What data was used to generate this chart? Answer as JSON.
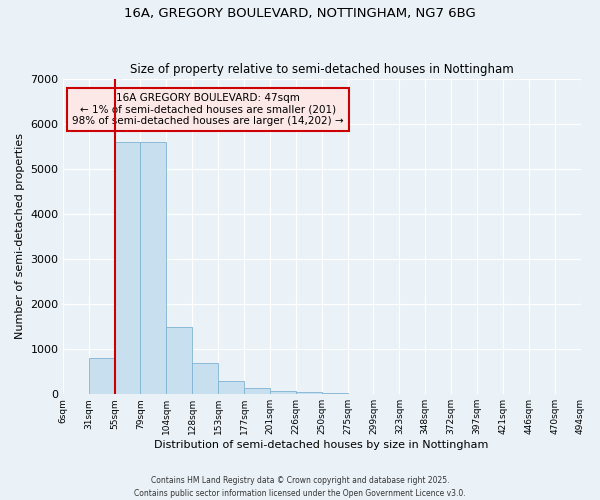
{
  "title": "16A, GREGORY BOULEVARD, NOTTINGHAM, NG7 6BG",
  "subtitle": "Size of property relative to semi-detached houses in Nottingham",
  "xlabel": "Distribution of semi-detached houses by size in Nottingham",
  "ylabel": "Number of semi-detached properties",
  "bar_color": "#c8dff0",
  "bar_edge_color": "#7fb3d3",
  "background_color": "#eaf2f8",
  "grid_color": "#ffffff",
  "ylim": [
    0,
    7000
  ],
  "yticks": [
    0,
    1000,
    2000,
    3000,
    4000,
    5000,
    6000,
    7000
  ],
  "bin_labels": [
    "6sqm",
    "31sqm",
    "55sqm",
    "79sqm",
    "104sqm",
    "128sqm",
    "153sqm",
    "177sqm",
    "201sqm",
    "226sqm",
    "250sqm",
    "275sqm",
    "299sqm",
    "323sqm",
    "348sqm",
    "372sqm",
    "397sqm",
    "421sqm",
    "446sqm",
    "470sqm",
    "494sqm"
  ],
  "bar_values": [
    5,
    800,
    5600,
    5600,
    1480,
    680,
    280,
    130,
    60,
    40,
    20,
    5,
    0,
    0,
    0,
    0,
    0,
    0,
    0,
    0
  ],
  "property_line_bin_index": 2,
  "annotation_title": "16A GREGORY BOULEVARD: 47sqm",
  "annotation_line1": "← 1% of semi-detached houses are smaller (201)",
  "annotation_line2": "98% of semi-detached houses are larger (14,202) →",
  "footer1": "Contains HM Land Registry data © Crown copyright and database right 2025.",
  "footer2": "Contains public sector information licensed under the Open Government Licence v3.0.",
  "red_line_color": "#cc0000",
  "annotation_box_facecolor": "#fde8e8",
  "annotation_box_edgecolor": "#cc0000"
}
